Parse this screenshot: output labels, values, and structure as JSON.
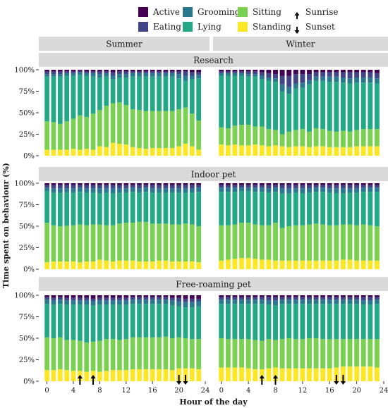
{
  "chart_data": {
    "type": "bar",
    "stacked": true,
    "xlabel": "Hour of the day",
    "ylabel": "Time spent on behaviour (%)",
    "x_ticks": [
      0,
      4,
      8,
      12,
      16,
      20,
      24
    ],
    "x_range": [
      -0.6,
      24.0
    ],
    "y_ticks": [
      "0%",
      "25%",
      "50%",
      "75%",
      "100%"
    ],
    "ylim": [
      0,
      100
    ],
    "hours": [
      0,
      1,
      2,
      3,
      4,
      5,
      6,
      7,
      8,
      9,
      10,
      11,
      12,
      13,
      14,
      15,
      16,
      17,
      18,
      19,
      20,
      21,
      22,
      23
    ],
    "stack_order": [
      "Standing",
      "Sitting",
      "Lying",
      "Grooming",
      "Eating",
      "Active"
    ],
    "legend": {
      "position": "top",
      "behaviours": [
        {
          "name": "Active",
          "color": "#440154"
        },
        {
          "name": "Eating",
          "color": "#414487"
        },
        {
          "name": "Grooming",
          "color": "#2a788e"
        },
        {
          "name": "Lying",
          "color": "#22a884"
        },
        {
          "name": "Sitting",
          "color": "#7ad151"
        },
        {
          "name": "Standing",
          "color": "#fde725"
        }
      ],
      "markers": [
        {
          "name": "Sunrise",
          "symbol": "up-arrow"
        },
        {
          "name": "Sunset",
          "symbol": "down-arrow"
        }
      ]
    },
    "columns": [
      "Summer",
      "Winter"
    ],
    "rows": [
      "Research",
      "Indoor pet",
      "Free-roaming pet"
    ],
    "panels": [
      {
        "row": "Research",
        "season": "Summer",
        "Standing": [
          7,
          7,
          7,
          7,
          8,
          7,
          8,
          7,
          11,
          10,
          15,
          14,
          13,
          10,
          9,
          8,
          9,
          9,
          9,
          9,
          11,
          14,
          11,
          7
        ],
        "Sitting": [
          33,
          32,
          30,
          33,
          35,
          40,
          37,
          42,
          42,
          48,
          46,
          48,
          46,
          44,
          44,
          44,
          43,
          43,
          43,
          43,
          43,
          42,
          38,
          34
        ],
        "Lying": [
          52,
          53,
          55,
          53,
          50,
          47,
          48,
          43,
          38,
          34,
          28,
          29,
          32,
          38,
          39,
          40,
          40,
          40,
          40,
          40,
          36,
          31,
          40,
          49
        ],
        "Grooming": [
          3,
          3,
          3,
          3,
          3,
          3,
          3,
          4,
          4,
          4,
          4,
          4,
          4,
          4,
          4,
          4,
          4,
          4,
          4,
          4,
          5,
          6,
          4,
          4
        ],
        "Eating": [
          3,
          3,
          3,
          2,
          2,
          2,
          2,
          2,
          3,
          2,
          4,
          3,
          3,
          2,
          2,
          2,
          2,
          2,
          2,
          2,
          3,
          5,
          4,
          3
        ],
        "Active": [
          2,
          2,
          2,
          2,
          2,
          1,
          2,
          2,
          2,
          2,
          3,
          2,
          2,
          2,
          2,
          2,
          2,
          2,
          2,
          2,
          2,
          2,
          3,
          3
        ]
      },
      {
        "row": "Research",
        "season": "Winter",
        "Standing": [
          13,
          12,
          13,
          12,
          12,
          13,
          12,
          11,
          12,
          11,
          10,
          11,
          11,
          10,
          11,
          11,
          10,
          10,
          10,
          10,
          11,
          11,
          11,
          11
        ],
        "Sitting": [
          20,
          20,
          22,
          24,
          24,
          21,
          22,
          20,
          18,
          14,
          18,
          19,
          20,
          18,
          21,
          20,
          19,
          18,
          19,
          18,
          19,
          20,
          20,
          20
        ],
        "Lying": [
          60,
          61,
          58,
          57,
          56,
          58,
          55,
          56,
          56,
          50,
          44,
          48,
          48,
          55,
          55,
          56,
          57,
          58,
          56,
          56,
          55,
          54,
          54,
          53
        ],
        "Grooming": [
          3,
          3,
          3,
          3,
          3,
          3,
          4,
          4,
          4,
          8,
          8,
          6,
          6,
          5,
          5,
          5,
          6,
          6,
          6,
          6,
          6,
          6,
          6,
          6
        ],
        "Eating": [
          2,
          2,
          2,
          2,
          3,
          3,
          4,
          5,
          5,
          10,
          13,
          11,
          10,
          7,
          5,
          5,
          5,
          5,
          6,
          7,
          6,
          6,
          6,
          6
        ],
        "Active": [
          2,
          2,
          2,
          2,
          2,
          2,
          3,
          4,
          5,
          7,
          7,
          5,
          5,
          5,
          3,
          3,
          3,
          3,
          3,
          3,
          3,
          3,
          3,
          4
        ]
      },
      {
        "row": "Indoor pet",
        "season": "Summer",
        "Standing": [
          8,
          9,
          9,
          9,
          9,
          8,
          9,
          9,
          11,
          10,
          9,
          10,
          10,
          10,
          9,
          9,
          9,
          10,
          10,
          9,
          9,
          9,
          9,
          8
        ],
        "Sitting": [
          46,
          42,
          41,
          42,
          42,
          44,
          42,
          43,
          41,
          41,
          42,
          43,
          44,
          44,
          46,
          46,
          44,
          43,
          43,
          43,
          43,
          44,
          43,
          42
        ],
        "Lying": [
          37,
          38,
          39,
          39,
          38,
          38,
          38,
          37,
          36,
          38,
          37,
          36,
          35,
          36,
          34,
          35,
          36,
          36,
          36,
          37,
          37,
          36,
          37,
          40
        ],
        "Grooming": [
          4,
          5,
          5,
          5,
          5,
          5,
          5,
          5,
          6,
          5,
          6,
          5,
          5,
          5,
          5,
          5,
          5,
          5,
          5,
          5,
          5,
          5,
          5,
          5
        ],
        "Eating": [
          3,
          4,
          4,
          4,
          4,
          3,
          4,
          4,
          4,
          4,
          4,
          4,
          4,
          3,
          4,
          3,
          4,
          4,
          4,
          4,
          4,
          4,
          4,
          3
        ],
        "Active": [
          2,
          2,
          2,
          2,
          2,
          2,
          2,
          2,
          2,
          2,
          2,
          2,
          2,
          2,
          2,
          2,
          2,
          2,
          2,
          2,
          2,
          2,
          2,
          2
        ]
      },
      {
        "row": "Indoor pet",
        "season": "Winter",
        "Standing": [
          10,
          11,
          12,
          13,
          13,
          12,
          11,
          11,
          10,
          10,
          10,
          10,
          10,
          10,
          10,
          10,
          10,
          10,
          11,
          11,
          10,
          10,
          10,
          10
        ],
        "Sitting": [
          41,
          40,
          40,
          41,
          41,
          40,
          40,
          40,
          44,
          38,
          40,
          41,
          41,
          42,
          43,
          42,
          41,
          41,
          41,
          41,
          41,
          42,
          41,
          40
        ],
        "Lying": [
          39,
          39,
          38,
          37,
          37,
          38,
          39,
          38,
          36,
          40,
          38,
          38,
          37,
          37,
          37,
          38,
          38,
          37,
          36,
          37,
          38,
          38,
          39,
          40
        ],
        "Grooming": [
          5,
          5,
          5,
          4,
          4,
          5,
          5,
          5,
          5,
          6,
          6,
          5,
          6,
          5,
          5,
          5,
          5,
          6,
          6,
          5,
          5,
          5,
          5,
          5
        ],
        "Eating": [
          3,
          3,
          3,
          3,
          3,
          3,
          3,
          4,
          3,
          4,
          4,
          4,
          4,
          4,
          3,
          3,
          4,
          4,
          4,
          4,
          4,
          3,
          3,
          3
        ],
        "Active": [
          2,
          2,
          2,
          2,
          2,
          2,
          2,
          2,
          2,
          2,
          2,
          2,
          2,
          2,
          2,
          2,
          2,
          2,
          2,
          2,
          2,
          2,
          2,
          2
        ]
      },
      {
        "row": "Free-roaming pet",
        "season": "Summer",
        "Standing": [
          13,
          13,
          14,
          13,
          12,
          12,
          11,
          12,
          11,
          12,
          13,
          13,
          13,
          14,
          14,
          14,
          14,
          14,
          14,
          13,
          15,
          15,
          15,
          14
        ],
        "Sitting": [
          38,
          37,
          37,
          35,
          36,
          35,
          34,
          34,
          36,
          37,
          36,
          35,
          36,
          37,
          37,
          37,
          37,
          37,
          38,
          37,
          36,
          35,
          34,
          35
        ],
        "Lying": [
          39,
          39,
          39,
          41,
          41,
          42,
          44,
          42,
          42,
          40,
          40,
          41,
          40,
          39,
          39,
          39,
          39,
          39,
          38,
          38,
          36,
          36,
          37,
          38
        ],
        "Grooming": [
          5,
          5,
          5,
          5,
          5,
          5,
          5,
          5,
          5,
          5,
          5,
          5,
          5,
          5,
          5,
          5,
          5,
          5,
          5,
          6,
          6,
          6,
          6,
          6
        ],
        "Eating": [
          3,
          3,
          3,
          3,
          3,
          3,
          3,
          3,
          3,
          3,
          3,
          3,
          3,
          3,
          3,
          3,
          3,
          3,
          3,
          3,
          4,
          4,
          4,
          3
        ],
        "Active": [
          2,
          3,
          2,
          3,
          3,
          3,
          3,
          4,
          3,
          3,
          3,
          3,
          3,
          2,
          2,
          2,
          2,
          2,
          2,
          3,
          3,
          4,
          4,
          4
        ]
      },
      {
        "row": "Free-roaming pet",
        "season": "Winter",
        "Standing": [
          16,
          16,
          16,
          16,
          15,
          14,
          14,
          15,
          16,
          15,
          15,
          15,
          15,
          15,
          15,
          15,
          15,
          16,
          17,
          17,
          17,
          17,
          17,
          16
        ],
        "Sitting": [
          34,
          33,
          33,
          33,
          34,
          34,
          33,
          34,
          32,
          34,
          35,
          34,
          34,
          35,
          35,
          34,
          34,
          33,
          32,
          32,
          32,
          32,
          32,
          33
        ],
        "Lying": [
          40,
          41,
          41,
          41,
          41,
          42,
          43,
          40,
          40,
          41,
          40,
          41,
          41,
          40,
          40,
          41,
          41,
          41,
          41,
          41,
          41,
          40,
          40,
          41
        ],
        "Grooming": [
          5,
          5,
          5,
          5,
          5,
          5,
          5,
          5,
          6,
          5,
          5,
          5,
          5,
          5,
          5,
          5,
          5,
          5,
          5,
          5,
          5,
          5,
          5,
          5
        ],
        "Eating": [
          3,
          3,
          3,
          3,
          3,
          3,
          3,
          4,
          4,
          3,
          3,
          3,
          3,
          3,
          3,
          3,
          3,
          3,
          3,
          3,
          3,
          4,
          4,
          3
        ],
        "Active": [
          2,
          2,
          2,
          2,
          2,
          2,
          2,
          2,
          2,
          2,
          2,
          2,
          2,
          2,
          2,
          2,
          2,
          2,
          2,
          2,
          2,
          2,
          2,
          2
        ]
      }
    ],
    "sun_events": [
      {
        "season": "Summer",
        "sunrise_hours": [
          5,
          7
        ],
        "sunset_hours": [
          20,
          21
        ]
      },
      {
        "season": "Winter",
        "sunrise_hours": [
          6,
          8
        ],
        "sunset_hours": [
          17,
          18
        ]
      }
    ]
  }
}
